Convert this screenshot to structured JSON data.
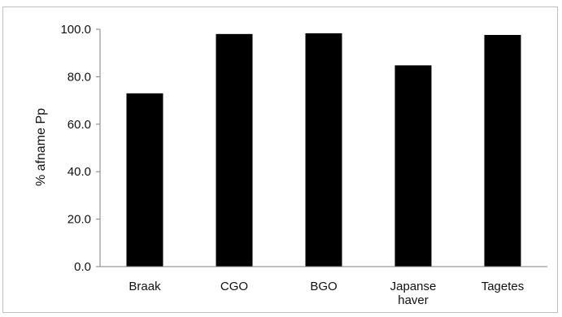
{
  "chart_data": {
    "type": "bar",
    "categories": [
      [
        "Braak"
      ],
      [
        "CGO"
      ],
      [
        "BGO"
      ],
      [
        "Japanse",
        "haver"
      ],
      [
        "Tagetes"
      ]
    ],
    "values": [
      73.0,
      98.0,
      98.3,
      84.8,
      97.6
    ],
    "title": "",
    "xlabel": "",
    "ylabel": "% afname Pp",
    "ylim": [
      0,
      100
    ],
    "yticks": [
      "0.0",
      "20.0",
      "40.0",
      "60.0",
      "80.0",
      "100.0"
    ],
    "grid": false,
    "bar_color": "#000000",
    "axis_color": "#808080"
  }
}
